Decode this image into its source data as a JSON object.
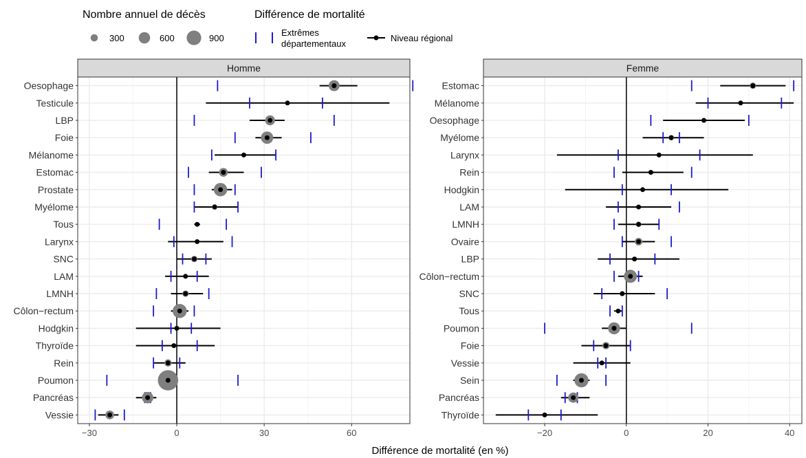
{
  "legend": {
    "size_title": "Nombre annuel de décès",
    "size_items": [
      {
        "label": "300",
        "value": 300
      },
      {
        "label": "600",
        "value": 600
      },
      {
        "label": "900",
        "value": 900
      }
    ],
    "diff_title": "Différence de mortalité",
    "extremes_label_line1": "Extrêmes",
    "extremes_label_line2": "départementaux",
    "regional_label": "Niveau régional"
  },
  "colors": {
    "point": "#7f7f7f",
    "line": "#000000",
    "extreme": "#1a1acc",
    "strip": "#d9d9d9",
    "grid": "#ebebeb"
  },
  "chart_data": [
    {
      "type": "dot-range",
      "panel": "Homme",
      "xlim": [
        -34,
        80
      ],
      "xticks": [
        -30,
        0,
        30,
        60
      ],
      "grid": true,
      "rows": [
        {
          "label": "Oesophage",
          "value": 54,
          "lo": 49,
          "hi": 62,
          "ext": [
            14,
            81
          ],
          "deaths": 560
        },
        {
          "label": "Testicule",
          "value": 38,
          "lo": 10,
          "hi": 73,
          "ext": [
            25,
            50
          ],
          "deaths": 10
        },
        {
          "label": "LBP",
          "value": 32,
          "lo": 25,
          "hi": 37,
          "ext": [
            6,
            54
          ],
          "deaths": 480
        },
        {
          "label": "Foie",
          "value": 31,
          "lo": 27,
          "hi": 36,
          "ext": [
            20,
            46
          ],
          "deaths": 680
        },
        {
          "label": "Mélanome",
          "value": 23,
          "lo": 13,
          "hi": 34,
          "ext": [
            12,
            34
          ],
          "deaths": 120
        },
        {
          "label": "Estomac",
          "value": 16,
          "lo": 11,
          "hi": 23,
          "ext": [
            4,
            29
          ],
          "deaths": 400
        },
        {
          "label": "Prostate",
          "value": 15,
          "lo": 12,
          "hi": 19,
          "ext": [
            6,
            20
          ],
          "deaths": 780
        },
        {
          "label": "Myélome",
          "value": 13,
          "lo": 6,
          "hi": 21,
          "ext": [
            6,
            21
          ],
          "deaths": 200
        },
        {
          "label": "Tous",
          "value": 7,
          "lo": 6,
          "hi": 8,
          "ext": [
            -6,
            17
          ],
          "deaths": 10
        },
        {
          "label": "Larynx",
          "value": 7,
          "lo": -3,
          "hi": 16,
          "ext": [
            -1,
            19
          ],
          "deaths": 60
        },
        {
          "label": "SNC",
          "value": 6,
          "lo": 0,
          "hi": 12,
          "ext": [
            2,
            10
          ],
          "deaths": 250
        },
        {
          "label": "LAM",
          "value": 3,
          "lo": -4,
          "hi": 11,
          "ext": [
            -2,
            7
          ],
          "deaths": 150
        },
        {
          "label": "LMNH",
          "value": 3,
          "lo": -2,
          "hi": 9,
          "ext": [
            -7,
            11
          ],
          "deaths": 250
        },
        {
          "label": "Côlon−rectum",
          "value": 1,
          "lo": -2,
          "hi": 4,
          "ext": [
            -8,
            6
          ],
          "deaths": 850
        },
        {
          "label": "Hodgkin",
          "value": 0,
          "lo": -14,
          "hi": 15,
          "ext": [
            -2,
            5
          ],
          "deaths": 10
        },
        {
          "label": "Thyroïde",
          "value": -1,
          "lo": -14,
          "hi": 13,
          "ext": [
            -5,
            7
          ],
          "deaths": 10
        },
        {
          "label": "Rein",
          "value": -3,
          "lo": -8,
          "hi": 3,
          "ext": [
            -8,
            1
          ],
          "deaths": 300
        },
        {
          "label": "Poumon",
          "value": -3,
          "lo": -5,
          "hi": -1,
          "ext": [
            -24,
            21
          ],
          "deaths": 1600
        },
        {
          "label": "Pancréas",
          "value": -10,
          "lo": -14,
          "hi": -7,
          "ext": [
            -11,
            -9
          ],
          "deaths": 600
        },
        {
          "label": "Vessie",
          "value": -23,
          "lo": -27,
          "hi": -20,
          "ext": [
            -28,
            -18
          ],
          "deaths": 400
        }
      ]
    },
    {
      "type": "dot-range",
      "panel": "Femme",
      "xlim": [
        -35,
        43
      ],
      "xticks": [
        -20,
        0,
        20,
        40
      ],
      "grid": true,
      "rows": [
        {
          "label": "Estomac",
          "value": 31,
          "lo": 23,
          "hi": 39,
          "ext": [
            16,
            41
          ],
          "deaths": 250
        },
        {
          "label": "Mélanome",
          "value": 28,
          "lo": 17,
          "hi": 41,
          "ext": [
            20,
            38
          ],
          "deaths": 80
        },
        {
          "label": "Oesophage",
          "value": 19,
          "lo": 9,
          "hi": 29,
          "ext": [
            6,
            30
          ],
          "deaths": 100
        },
        {
          "label": "Myélome",
          "value": 11,
          "lo": 4,
          "hi": 19,
          "ext": [
            9,
            13
          ],
          "deaths": 200
        },
        {
          "label": "Larynx",
          "value": 8,
          "lo": -17,
          "hi": 31,
          "ext": [
            -2,
            18
          ],
          "deaths": 10
        },
        {
          "label": "Rein",
          "value": 6,
          "lo": -1,
          "hi": 14,
          "ext": [
            -3,
            16
          ],
          "deaths": 150
        },
        {
          "label": "Hodgkin",
          "value": 4,
          "lo": -15,
          "hi": 25,
          "ext": [
            -1,
            11
          ],
          "deaths": 10
        },
        {
          "label": "LAM",
          "value": 3,
          "lo": -5,
          "hi": 11,
          "ext": [
            -2,
            13
          ],
          "deaths": 130
        },
        {
          "label": "LMNH",
          "value": 3,
          "lo": -2,
          "hi": 8,
          "ext": [
            -3,
            8
          ],
          "deaths": 200
        },
        {
          "label": "Ovaire",
          "value": 3,
          "lo": -1,
          "hi": 7,
          "ext": [
            -1,
            11
          ],
          "deaths": 320
        },
        {
          "label": "LBP",
          "value": 2,
          "lo": -7,
          "hi": 13,
          "ext": [
            -4,
            7
          ],
          "deaths": 60
        },
        {
          "label": "Côlon−rectum",
          "value": 1,
          "lo": -2,
          "hi": 4,
          "ext": [
            -3,
            3
          ],
          "deaths": 750
        },
        {
          "label": "SNC",
          "value": -1,
          "lo": -8,
          "hi": 7,
          "ext": [
            -6,
            10
          ],
          "deaths": 180
        },
        {
          "label": "Tous",
          "value": -2,
          "lo": -3,
          "hi": -1,
          "ext": [
            -4,
            -1
          ],
          "deaths": 10
        },
        {
          "label": "Poumon",
          "value": -3,
          "lo": -6,
          "hi": 0,
          "ext": [
            -20,
            16
          ],
          "deaths": 650
        },
        {
          "label": "Foie",
          "value": -5,
          "lo": -11,
          "hi": 1,
          "ext": [
            -8,
            1
          ],
          "deaths": 300
        },
        {
          "label": "Vessie",
          "value": -6,
          "lo": -13,
          "hi": 1,
          "ext": [
            -7,
            -5
          ],
          "deaths": 150
        },
        {
          "label": "Sein",
          "value": -11,
          "lo": -13,
          "hi": -9,
          "ext": [
            -17,
            -5
          ],
          "deaths": 850
        },
        {
          "label": "Pancréas",
          "value": -13,
          "lo": -16,
          "hi": -9,
          "ext": [
            -15,
            -12
          ],
          "deaths": 500
        },
        {
          "label": "Thyroïde",
          "value": -20,
          "lo": -32,
          "hi": -7,
          "ext": [
            -24,
            -16
          ],
          "deaths": 10
        }
      ]
    }
  ],
  "axis": {
    "xlabel": "Différence de mortalité (en %)"
  }
}
